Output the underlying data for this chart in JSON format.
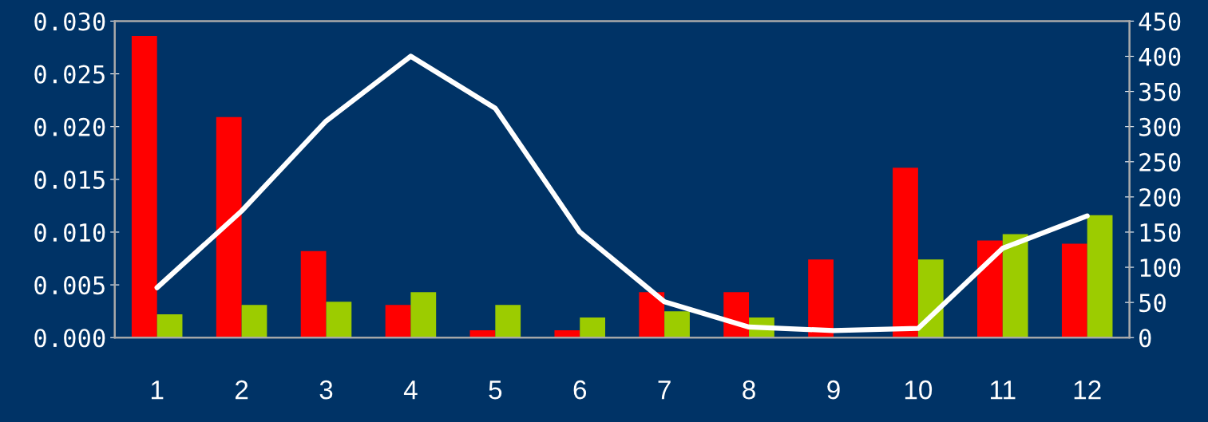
{
  "chart_data": {
    "type": "bar",
    "categories": [
      "1",
      "2",
      "3",
      "4",
      "5",
      "6",
      "7",
      "8",
      "9",
      "10",
      "11",
      "12"
    ],
    "series": [
      {
        "color": "#ff0000",
        "values": [
          0.0286,
          0.0209,
          0.0082,
          0.0031,
          0.0007,
          0.0007,
          0.0043,
          0.0043,
          0.0074,
          0.0161,
          0.0092,
          0.0089
        ]
      },
      {
        "color": "#9ccc00",
        "values": [
          0.0022,
          0.0031,
          0.0034,
          0.0043,
          0.0031,
          0.0019,
          0.0025,
          0.0019,
          null,
          0.0074,
          0.0098,
          0.0116
        ]
      },
      {
        "type": "line",
        "axis": "y2",
        "color": "#ffffff",
        "values": [
          71,
          180,
          308,
          400,
          326,
          150,
          51,
          15,
          10,
          13,
          127,
          173
        ]
      }
    ],
    "ylim": [
      0,
      0.03
    ],
    "yticks": [
      {
        "value": 0,
        "label": "0.000"
      },
      {
        "value": 0.005,
        "label": "0.005"
      },
      {
        "value": 0.01,
        "label": "0.010"
      },
      {
        "value": 0.015,
        "label": "0.015"
      },
      {
        "value": 0.02,
        "label": "0.020"
      },
      {
        "value": 0.025,
        "label": "0.025"
      },
      {
        "value": 0.03,
        "label": "0.030"
      }
    ],
    "y2lim": [
      0,
      450
    ],
    "y2ticks": [
      0,
      50,
      100,
      150,
      200,
      250,
      300,
      350,
      400,
      450
    ],
    "grid": false,
    "legend": false
  }
}
